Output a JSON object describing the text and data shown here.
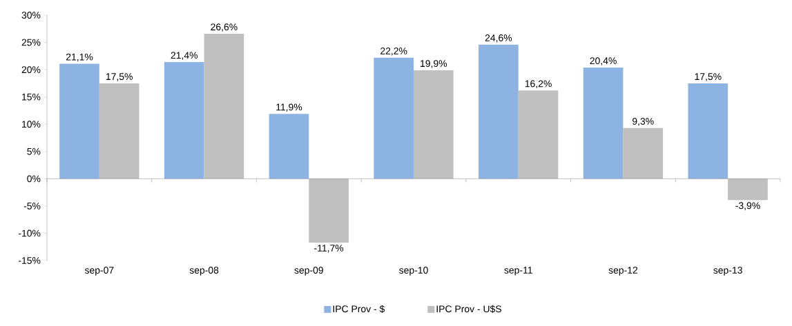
{
  "chart_data": {
    "type": "bar",
    "categories": [
      "sep-07",
      "sep-08",
      "sep-09",
      "sep-10",
      "sep-11",
      "sep-12",
      "sep-13"
    ],
    "series": [
      {
        "name": "IPC Prov - $",
        "color": "#8db3e2",
        "values": [
          21.1,
          21.4,
          11.9,
          22.2,
          24.6,
          20.4,
          17.5
        ],
        "value_labels": [
          "21,1%",
          "21,4%",
          "11,9%",
          "22,2%",
          "24,6%",
          "20,4%",
          "17,5%"
        ]
      },
      {
        "name": "IPC Prov - U$S",
        "color": "#bfbfbf",
        "values": [
          17.5,
          26.6,
          -11.7,
          19.9,
          16.2,
          9.3,
          -3.9
        ],
        "value_labels": [
          "17,5%",
          "26,6%",
          "-11,7%",
          "19,9%",
          "16,2%",
          "9,3%",
          "-3,9%"
        ]
      }
    ],
    "ylim": [
      -15,
      30
    ],
    "yticks": [
      {
        "value": -15,
        "label": "-15%"
      },
      {
        "value": -10,
        "label": "-10%"
      },
      {
        "value": -5,
        "label": "-5%"
      },
      {
        "value": 0,
        "label": "0%"
      },
      {
        "value": 5,
        "label": "5%"
      },
      {
        "value": 10,
        "label": "10%"
      },
      {
        "value": 15,
        "label": "15%"
      },
      {
        "value": 20,
        "label": "20%"
      },
      {
        "value": 25,
        "label": "25%"
      },
      {
        "value": 30,
        "label": "30%"
      }
    ],
    "legend": "bottom"
  }
}
